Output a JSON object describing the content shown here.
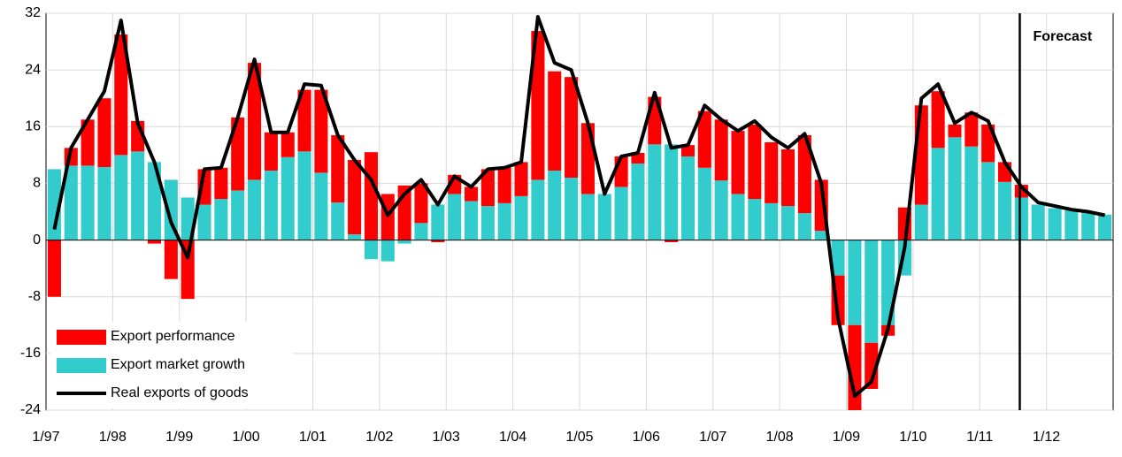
{
  "chart_data": {
    "type": "bar",
    "annotation": "Forecast",
    "categories": [
      "1/97",
      null,
      null,
      null,
      "1/98",
      null,
      null,
      null,
      "1/99",
      null,
      null,
      null,
      "1/00",
      null,
      null,
      null,
      "1/01",
      null,
      null,
      null,
      "1/02",
      null,
      null,
      null,
      "1/03",
      null,
      null,
      null,
      "1/04",
      null,
      null,
      null,
      "1/05",
      null,
      null,
      null,
      "1/06",
      null,
      null,
      null,
      "1/07",
      null,
      null,
      null,
      "1/08",
      null,
      null,
      null,
      "1/09",
      null,
      null,
      null,
      "1/10",
      null,
      null,
      null,
      "1/11",
      null,
      null,
      null,
      "1/12",
      null,
      null,
      null
    ],
    "series": [
      {
        "name": "Export performance",
        "type": "bar",
        "color": "#ff0000",
        "values": [
          -8,
          2.5,
          6.5,
          9.7,
          17,
          4.3,
          -0.5,
          -5.5,
          -8.3,
          5,
          4.4,
          10.3,
          16.5,
          5.4,
          3.5,
          8.7,
          11.7,
          9.5,
          10.5,
          12.4,
          6.5,
          7.7,
          5.6,
          -0.3,
          2.7,
          2,
          5.2,
          5,
          4.8,
          21,
          14,
          14.2,
          10,
          0,
          4.3,
          1.5,
          6.7,
          -0.3,
          1.6,
          8,
          8.6,
          8.9,
          10.5,
          8.6,
          8,
          11,
          7.2,
          -7,
          -12,
          -6.5,
          -1.5,
          4.6,
          14,
          8,
          1.8,
          4.8,
          5.3,
          2.8,
          1.8,
          0,
          0,
          0,
          0,
          0
        ]
      },
      {
        "name": "Export market growth",
        "type": "bar",
        "color": "#33cccc",
        "values": [
          10,
          10.5,
          10.5,
          10.3,
          12,
          12.5,
          11,
          8.5,
          6,
          5,
          5.8,
          7,
          8.5,
          9.8,
          11.7,
          12.5,
          9.5,
          5.3,
          0.8,
          -2.7,
          -3,
          -0.5,
          2.4,
          5,
          6.5,
          5.5,
          4.8,
          5.2,
          6.2,
          8.5,
          9.8,
          8.8,
          6.5,
          6.5,
          7.5,
          10.8,
          13.5,
          13.5,
          11.8,
          10.2,
          8.4,
          6.5,
          5.8,
          5.2,
          4.8,
          3.8,
          1.3,
          -5,
          -12,
          -14.5,
          -12,
          -5,
          5,
          13,
          14.5,
          13.2,
          11,
          8.2,
          6,
          5,
          4.5,
          4.2,
          4,
          3.6
        ]
      },
      {
        "name": "Real exports of goods",
        "type": "line",
        "color": "#000000",
        "values": [
          1.5,
          13,
          17,
          21,
          31,
          16.5,
          11,
          2.5,
          -2.5,
          10,
          10.2,
          17.3,
          25.5,
          15.2,
          15.2,
          22,
          21.8,
          14.8,
          11.3,
          8.5,
          3.5,
          6.5,
          8.5,
          5,
          9,
          7.5,
          10,
          10.2,
          11,
          31.5,
          25,
          24,
          16.5,
          6.5,
          11.8,
          12.3,
          20.8,
          13,
          13.4,
          19,
          17,
          15.4,
          16.8,
          14.5,
          13,
          15,
          8,
          -11,
          -22,
          -20,
          -12.5,
          -1,
          20,
          22,
          16.5,
          18,
          16.8,
          11,
          7.5,
          5.3,
          4.8,
          4.3,
          4,
          3.5
        ]
      }
    ],
    "ylim": [
      -24,
      32
    ],
    "yticks": [
      -24,
      -16,
      -8,
      0,
      8,
      16,
      24,
      32
    ],
    "grid": true,
    "legend": "lower left"
  }
}
